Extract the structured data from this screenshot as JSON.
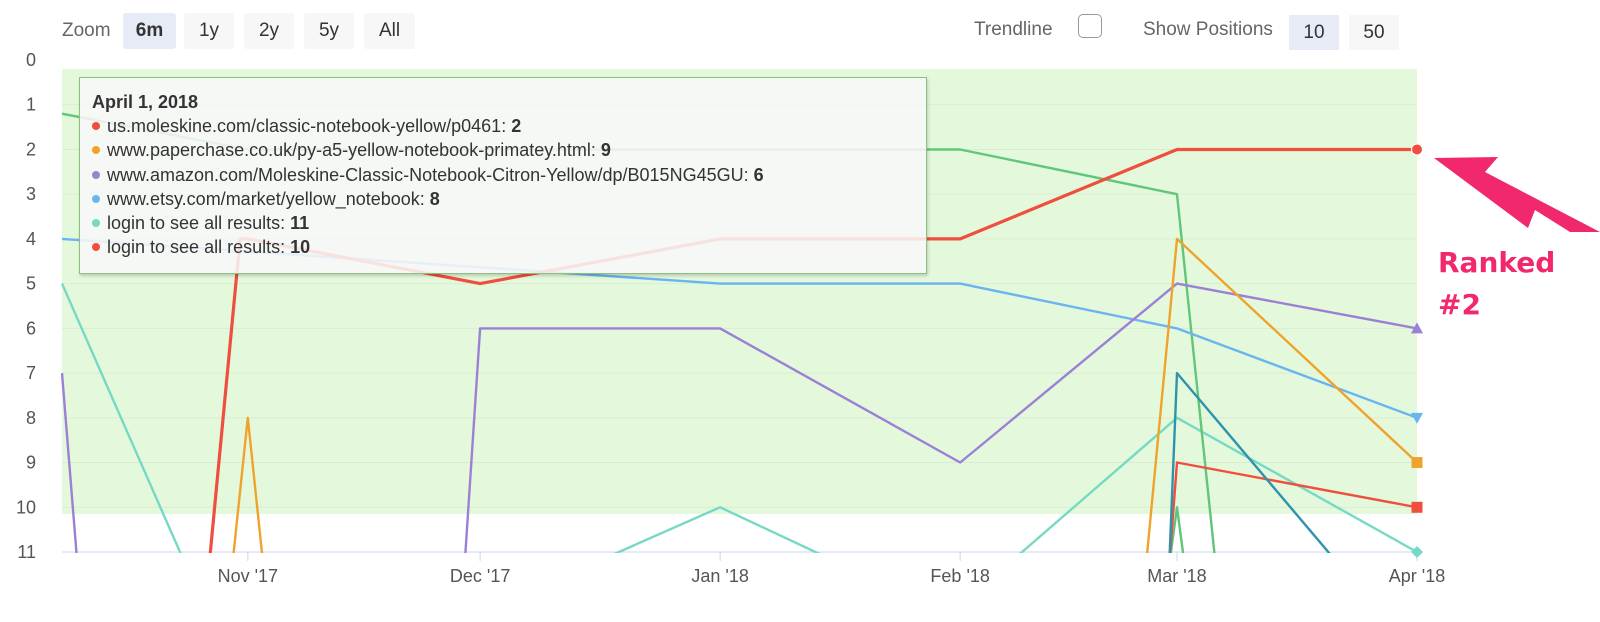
{
  "toolbar": {
    "zoom_label": "Zoom",
    "zoom_options": [
      "6m",
      "1y",
      "2y",
      "5y",
      "All"
    ],
    "zoom_selected": "6m",
    "trendline_label": "Trendline",
    "trendline_checked": false,
    "positions_label": "Show Positions",
    "positions_options": [
      "10",
      "50"
    ],
    "positions_selected": "10"
  },
  "colors": {
    "red": "#f04e3e",
    "green": "#61c57a",
    "orange": "#f0a32c",
    "purple": "#9b80d6",
    "blue": "#6bb4f0",
    "teal": "#77d9c4",
    "darkteal": "#2f93ae",
    "band": "#e4f9dc",
    "annotation": "#f2286e"
  },
  "tooltip": {
    "title": "April 1, 2018",
    "rows": [
      {
        "label": "us.moleskine.com/classic-notebook-yellow/p0461:",
        "value": "2",
        "color": "#f04e3e"
      },
      {
        "label": "www.paperchase.co.uk/py-a5-yellow-notebook-primatey.html:",
        "value": "9",
        "color": "#f0a32c"
      },
      {
        "label": "www.amazon.com/Moleskine-Classic-Notebook-Citron-Yellow/dp/B015NG45GU:",
        "value": "6",
        "color": "#9b80d6"
      },
      {
        "label": "www.etsy.com/market/yellow_notebook:",
        "value": "8",
        "color": "#6bb4f0"
      },
      {
        "label": "login to see all results:",
        "value": "11",
        "color": "#77d9c4"
      },
      {
        "label": "login to see all results:",
        "value": "10",
        "color": "#f04e3e"
      }
    ]
  },
  "annotation": {
    "line1": "Ranked",
    "line2": "#2"
  },
  "chart_data": {
    "type": "line",
    "y_reversed": true,
    "ylim": [
      0,
      11
    ],
    "yticks": [
      "0",
      "1",
      "2",
      "3",
      "4",
      "5",
      "6",
      "7",
      "8",
      "9",
      "10",
      "11"
    ],
    "x_ticks": [
      {
        "label": "Nov '17",
        "x": "2017-11-01"
      },
      {
        "label": "Dec '17",
        "x": "2017-12-01"
      },
      {
        "label": "Jan '18",
        "x": "2018-01-01"
      },
      {
        "label": "Feb '18",
        "x": "2018-02-01"
      },
      {
        "label": "Mar '18",
        "x": "2018-03-01"
      },
      {
        "label": "Apr '18",
        "x": "2018-04-01"
      }
    ],
    "xlim": [
      "2017-10-08",
      "2018-04-01"
    ],
    "highlight_band": [
      0,
      10.15
    ],
    "series": [
      {
        "color": "#77d9c4",
        "points": [
          [
            "2017-10-08",
            5.0
          ],
          [
            "2017-10-24",
            11.3
          ],
          [
            "2017-12-15",
            11.3
          ],
          [
            "2018-01-01",
            10.0
          ],
          [
            "2018-01-17",
            11.3
          ],
          [
            "2018-02-07",
            11.3
          ],
          [
            "2018-03-01",
            8.0
          ],
          [
            "2018-04-01",
            11.0
          ]
        ]
      },
      {
        "color": "#61c57a",
        "points": [
          [
            "2017-10-08",
            1.2
          ],
          [
            "2017-11-01",
            2.0
          ],
          [
            "2018-02-01",
            2.0
          ],
          [
            "2018-03-01",
            3.0
          ],
          [
            "2018-03-06",
            11.3
          ]
        ]
      },
      {
        "color": "#61c57a",
        "points": [
          [
            "2018-02-28",
            11.3
          ],
          [
            "2018-03-01",
            10.0
          ],
          [
            "2018-03-02",
            11.3
          ]
        ]
      },
      {
        "color": "#6bb4f0",
        "points": [
          [
            "2017-10-08",
            4.0
          ],
          [
            "2018-01-01",
            5.0
          ],
          [
            "2018-02-01",
            5.0
          ],
          [
            "2018-03-01",
            6.0
          ],
          [
            "2018-04-01",
            8.0
          ]
        ]
      },
      {
        "color": "#9b80d6",
        "points": [
          [
            "2017-10-08",
            7.0
          ],
          [
            "2017-10-10",
            11.3
          ]
        ]
      },
      {
        "color": "#9b80d6",
        "points": [
          [
            "2017-11-29",
            11.3
          ],
          [
            "2017-12-01",
            6.0
          ],
          [
            "2018-01-01",
            6.0
          ],
          [
            "2018-02-01",
            9.0
          ],
          [
            "2018-03-01",
            5.0
          ],
          [
            "2018-04-01",
            6.0
          ]
        ]
      },
      {
        "color": "#f0a32c",
        "points": [
          [
            "2017-10-30",
            11.3
          ],
          [
            "2017-11-01",
            8.0
          ],
          [
            "2017-11-03",
            11.3
          ]
        ]
      },
      {
        "color": "#f0a32c",
        "points": [
          [
            "2018-02-25",
            11.3
          ],
          [
            "2018-03-01",
            4.0
          ],
          [
            "2018-04-01",
            9.0
          ]
        ]
      },
      {
        "color": "#f04e3e",
        "points": [
          [
            "2017-10-27",
            11.3
          ],
          [
            "2017-10-31",
            4.0
          ],
          [
            "2017-11-01",
            4.0
          ],
          [
            "2017-12-01",
            5.0
          ],
          [
            "2018-01-01",
            4.0
          ],
          [
            "2018-02-01",
            4.0
          ],
          [
            "2018-03-01",
            2.0
          ],
          [
            "2018-04-01",
            2.0
          ]
        ]
      },
      {
        "color": "#f04e3e",
        "points": [
          [
            "2018-02-28",
            11.3
          ],
          [
            "2018-03-01",
            9.0
          ],
          [
            "2018-04-01",
            10.0
          ]
        ]
      },
      {
        "color": "#2f93ae",
        "points": [
          [
            "2018-02-28",
            11.3
          ],
          [
            "2018-03-01",
            7.0
          ],
          [
            "2018-03-22",
            11.3
          ]
        ]
      }
    ],
    "end_markers": [
      {
        "y": 2,
        "color": "#f04e3e",
        "shape": "circle"
      },
      {
        "y": 6,
        "color": "#9b80d6",
        "shape": "triangle-up"
      },
      {
        "y": 8,
        "color": "#6bb4f0",
        "shape": "triangle-down"
      },
      {
        "y": 9,
        "color": "#f0a32c",
        "shape": "square"
      },
      {
        "y": 10,
        "color": "#f04e3e",
        "shape": "square"
      },
      {
        "y": 11,
        "color": "#77d9c4",
        "shape": "diamond"
      }
    ]
  }
}
